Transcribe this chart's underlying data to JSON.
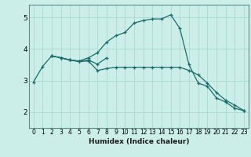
{
  "xlabel": "Humidex (Indice chaleur)",
  "bg_color": "#cceee8",
  "grid_color": "#aad8d0",
  "line_color": "#1a6b6b",
  "xlim": [
    -0.5,
    23.5
  ],
  "ylim": [
    1.5,
    5.4
  ],
  "xticks": [
    0,
    1,
    2,
    3,
    4,
    5,
    6,
    7,
    8,
    9,
    10,
    11,
    12,
    13,
    14,
    15,
    16,
    17,
    18,
    19,
    20,
    21,
    22,
    23
  ],
  "yticks": [
    2,
    3,
    4,
    5
  ],
  "curve1_x": [
    0,
    1,
    2,
    3,
    4,
    5,
    6,
    7,
    8,
    9,
    10,
    11,
    12,
    13,
    14,
    15,
    16,
    17,
    18,
    19,
    20,
    21,
    22,
    23
  ],
  "curve1_y": [
    2.95,
    3.45,
    3.78,
    3.72,
    3.65,
    3.62,
    3.72,
    3.88,
    4.22,
    4.42,
    4.52,
    4.82,
    4.9,
    4.95,
    4.95,
    5.08,
    4.65,
    3.5,
    2.92,
    2.82,
    2.45,
    2.32,
    2.12,
    2.05
  ],
  "curve2_x": [
    2,
    3,
    4,
    5,
    6,
    7,
    8,
    9,
    10,
    11,
    12,
    13,
    14,
    15,
    16,
    17,
    18,
    19,
    20,
    21,
    22,
    23
  ],
  "curve2_y": [
    3.78,
    3.72,
    3.65,
    3.6,
    3.62,
    3.32,
    3.38,
    3.42,
    3.42,
    3.42,
    3.42,
    3.42,
    3.42,
    3.42,
    3.42,
    3.32,
    3.18,
    2.92,
    2.62,
    2.38,
    2.22,
    2.05
  ],
  "curve3_x": [
    2,
    3,
    4,
    5,
    6,
    7,
    8
  ],
  "curve3_y": [
    3.78,
    3.72,
    3.65,
    3.6,
    3.65,
    3.52,
    3.72
  ],
  "marker": "+"
}
